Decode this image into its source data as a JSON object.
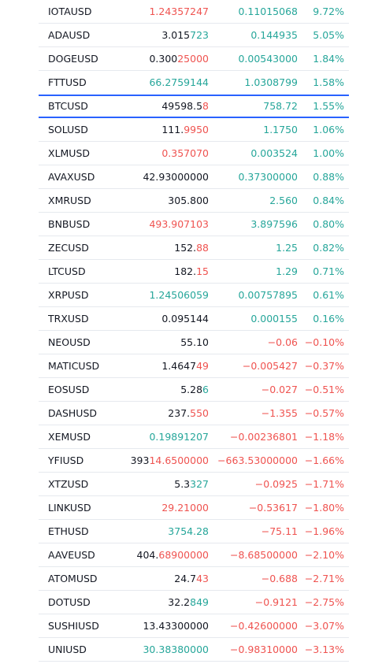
{
  "colors": {
    "positive": "#26a69a",
    "negative": "#ef5350",
    "neutral": "#131722",
    "highlight_border": "#2962ff"
  },
  "rows": [
    {
      "symbol": "IOTAUSD",
      "last_a": "",
      "last_b": "1.24357247",
      "last_color": "negative",
      "change": "0.11015068",
      "change_color": "positive",
      "pct": "9.72%",
      "pct_color": "positive"
    },
    {
      "symbol": "ADAUSD",
      "last_a": "3.015",
      "last_b": "723",
      "last_color": "positive",
      "change": "0.144935",
      "change_color": "positive",
      "pct": "5.05%",
      "pct_color": "positive"
    },
    {
      "symbol": "DOGEUSD",
      "last_a": "0.300",
      "last_b": "25000",
      "last_color": "negative",
      "change": "0.00543000",
      "change_color": "positive",
      "pct": "1.84%",
      "pct_color": "positive"
    },
    {
      "symbol": "FTTUSD",
      "last_a": "",
      "last_b": "66.2759144",
      "last_color": "positive",
      "change": "1.0308799",
      "change_color": "positive",
      "pct": "1.58%",
      "pct_color": "positive"
    },
    {
      "symbol": "BTCUSD",
      "last_a": "49598.5",
      "last_b": "8",
      "last_color": "negative",
      "change": "758.72",
      "change_color": "positive",
      "pct": "1.55%",
      "pct_color": "positive",
      "highlight": true
    },
    {
      "symbol": "SOLUSD",
      "last_a": "111.",
      "last_b": "9950",
      "last_color": "negative",
      "change": "1.1750",
      "change_color": "positive",
      "pct": "1.06%",
      "pct_color": "positive"
    },
    {
      "symbol": "XLMUSD",
      "last_a": "",
      "last_b": "0.357070",
      "last_color": "negative",
      "change": "0.003524",
      "change_color": "positive",
      "pct": "1.00%",
      "pct_color": "positive"
    },
    {
      "symbol": "AVAXUSD",
      "last_a": "42.93000000",
      "last_b": "",
      "last_color": "neutral",
      "change": "0.37300000",
      "change_color": "positive",
      "pct": "0.88%",
      "pct_color": "positive"
    },
    {
      "symbol": "XMRUSD",
      "last_a": "305.800",
      "last_b": "",
      "last_color": "neutral",
      "change": "2.560",
      "change_color": "positive",
      "pct": "0.84%",
      "pct_color": "positive"
    },
    {
      "symbol": "BNBUSD",
      "last_a": "",
      "last_b": "493.907103",
      "last_color": "negative",
      "change": "3.897596",
      "change_color": "positive",
      "pct": "0.80%",
      "pct_color": "positive"
    },
    {
      "symbol": "ZECUSD",
      "last_a": "152.",
      "last_b": "88",
      "last_color": "negative",
      "change": "1.25",
      "change_color": "positive",
      "pct": "0.82%",
      "pct_color": "positive"
    },
    {
      "symbol": "LTCUSD",
      "last_a": "182.",
      "last_b": "15",
      "last_color": "negative",
      "change": "1.29",
      "change_color": "positive",
      "pct": "0.71%",
      "pct_color": "positive"
    },
    {
      "symbol": "XRPUSD",
      "last_a": "",
      "last_b": "1.24506059",
      "last_color": "positive",
      "change": "0.00757895",
      "change_color": "positive",
      "pct": "0.61%",
      "pct_color": "positive"
    },
    {
      "symbol": "TRXUSD",
      "last_a": "0.095144",
      "last_b": "",
      "last_color": "neutral",
      "change": "0.000155",
      "change_color": "positive",
      "pct": "0.16%",
      "pct_color": "positive"
    },
    {
      "symbol": "NEOUSD",
      "last_a": "55.10",
      "last_b": "",
      "last_color": "neutral",
      "change": "−0.06",
      "change_color": "negative",
      "pct": "−0.10%",
      "pct_color": "negative"
    },
    {
      "symbol": "MATICUSD",
      "last_a": "1.4647",
      "last_b": "49",
      "last_color": "negative",
      "change": "−0.005427",
      "change_color": "negative",
      "pct": "−0.37%",
      "pct_color": "negative"
    },
    {
      "symbol": "EOSUSD",
      "last_a": "5.28",
      "last_b": "6",
      "last_color": "positive",
      "change": "−0.027",
      "change_color": "negative",
      "pct": "−0.51%",
      "pct_color": "negative"
    },
    {
      "symbol": "DASHUSD",
      "last_a": "237.",
      "last_b": "550",
      "last_color": "negative",
      "change": "−1.355",
      "change_color": "negative",
      "pct": "−0.57%",
      "pct_color": "negative"
    },
    {
      "symbol": "XEMUSD",
      "last_a": "",
      "last_b": "0.19891207",
      "last_color": "positive",
      "change": "−0.00236801",
      "change_color": "negative",
      "pct": "−1.18%",
      "pct_color": "negative"
    },
    {
      "symbol": "YFIUSD",
      "last_a": "393",
      "last_b": "14.6500000",
      "last_color": "negative",
      "change": "−663.53000000",
      "change_color": "negative",
      "pct": "−1.66%",
      "pct_color": "negative"
    },
    {
      "symbol": "XTZUSD",
      "last_a": "5.3",
      "last_b": "327",
      "last_color": "positive",
      "change": "−0.0925",
      "change_color": "negative",
      "pct": "−1.71%",
      "pct_color": "negative"
    },
    {
      "symbol": "LINKUSD",
      "last_a": "",
      "last_b": "29.21000",
      "last_color": "negative",
      "change": "−0.53617",
      "change_color": "negative",
      "pct": "−1.80%",
      "pct_color": "negative"
    },
    {
      "symbol": "ETHUSD",
      "last_a": "",
      "last_b": "3754.28",
      "last_color": "positive",
      "change": "−75.11",
      "change_color": "negative",
      "pct": "−1.96%",
      "pct_color": "negative"
    },
    {
      "symbol": "AAVEUSD",
      "last_a": "404.",
      "last_b": "68900000",
      "last_color": "negative",
      "change": "−8.68500000",
      "change_color": "negative",
      "pct": "−2.10%",
      "pct_color": "negative"
    },
    {
      "symbol": "ATOMUSD",
      "last_a": "24.7",
      "last_b": "43",
      "last_color": "negative",
      "change": "−0.688",
      "change_color": "negative",
      "pct": "−2.71%",
      "pct_color": "negative"
    },
    {
      "symbol": "DOTUSD",
      "last_a": "32.2",
      "last_b": "849",
      "last_color": "positive",
      "change": "−0.9121",
      "change_color": "negative",
      "pct": "−2.75%",
      "pct_color": "negative"
    },
    {
      "symbol": "SUSHIUSD",
      "last_a": "13.43300000",
      "last_b": "",
      "last_color": "neutral",
      "change": "−0.42600000",
      "change_color": "negative",
      "pct": "−3.07%",
      "pct_color": "negative"
    },
    {
      "symbol": "UNIUSD",
      "last_a": "",
      "last_b": "30.38380000",
      "last_color": "positive",
      "change": "−0.98310000",
      "change_color": "negative",
      "pct": "−3.13%",
      "pct_color": "negative"
    }
  ]
}
